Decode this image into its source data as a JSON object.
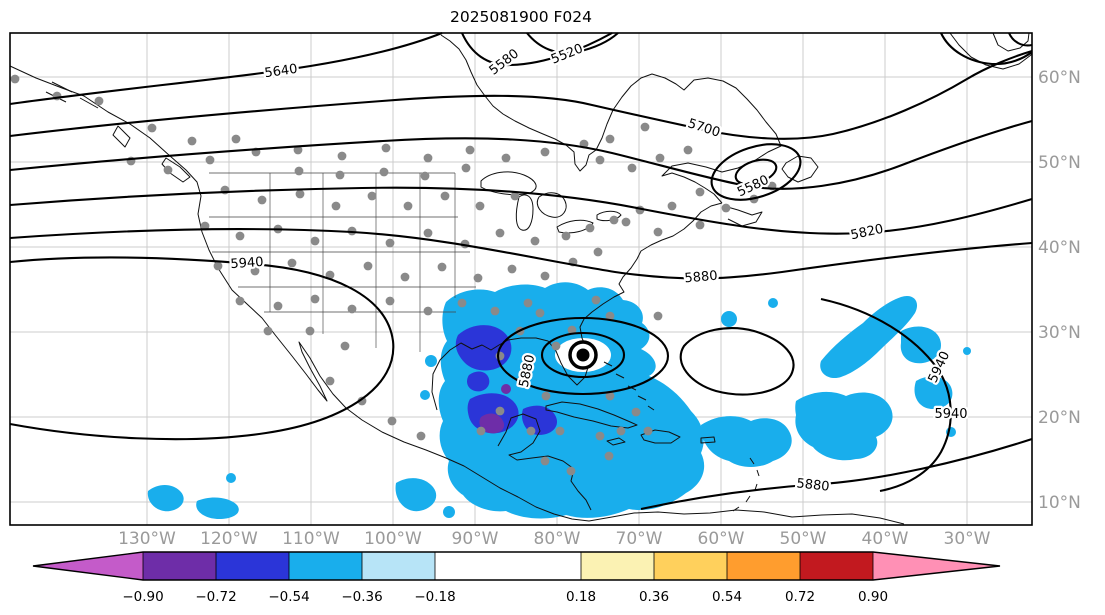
{
  "title": "2025081900 F024",
  "axes": {
    "lon_ticks": [
      "130°W",
      "120°W",
      "110°W",
      "100°W",
      "90°W",
      "80°W",
      "70°W",
      "60°W",
      "50°W",
      "40°W",
      "30°W"
    ],
    "lat_ticks": [
      "60°N",
      "50°N",
      "40°N",
      "30°N",
      "20°N",
      "10°N"
    ]
  },
  "contour_labels": [
    {
      "value": "5640"
    },
    {
      "value": "5580"
    },
    {
      "value": "5520"
    },
    {
      "value": "5700"
    },
    {
      "value": "5580"
    },
    {
      "value": "5820"
    },
    {
      "value": "5880"
    },
    {
      "value": "5940"
    },
    {
      "value": "5880"
    },
    {
      "value": "5940"
    },
    {
      "value": "5940"
    },
    {
      "value": "5880"
    }
  ],
  "colorbar": {
    "tick_labels": [
      "−0.90",
      "−0.72",
      "−0.54",
      "−0.36",
      "−0.18",
      "0.18",
      "0.36",
      "0.54",
      "0.72",
      "0.90"
    ],
    "segment_colors": [
      "#6E2DA8",
      "#2B35D8",
      "#19AEEC",
      "#B7E4F7",
      "#FFFFFF",
      "#FBF2B3",
      "#FFD05C",
      "#FF9D2E",
      "#C2191F"
    ],
    "under_arrow_color": "#C45BC9",
    "over_arrow_color": "#FF90B5"
  },
  "map": {
    "station_dot_color": "#8a8a8a",
    "shading_colors": {
      "light": "#19AEEC",
      "medium": "#2B35D8",
      "dark": "#6E2DA8"
    },
    "hurricane_symbol": "tropical-cyclone-marker"
  },
  "chart_data": {
    "type": "contour-map",
    "title": "2025081900 F024",
    "lon_ticks_deg_w": [
      130,
      120,
      110,
      100,
      90,
      80,
      70,
      60,
      50,
      40,
      30
    ],
    "lat_ticks_deg_n": [
      60,
      50,
      40,
      30,
      20,
      10
    ],
    "contour_labels_visible": [
      5640,
      5580,
      5520,
      5700,
      5580,
      5820,
      5880,
      5940,
      5880,
      5940,
      5940,
      5880
    ],
    "colorbar_tick_values": [
      -0.9,
      -0.72,
      -0.54,
      -0.36,
      -0.18,
      0.18,
      0.36,
      0.54,
      0.72,
      0.9
    ],
    "grid": true,
    "colorbar_position": "bottom",
    "colorbar_extend": "both"
  }
}
